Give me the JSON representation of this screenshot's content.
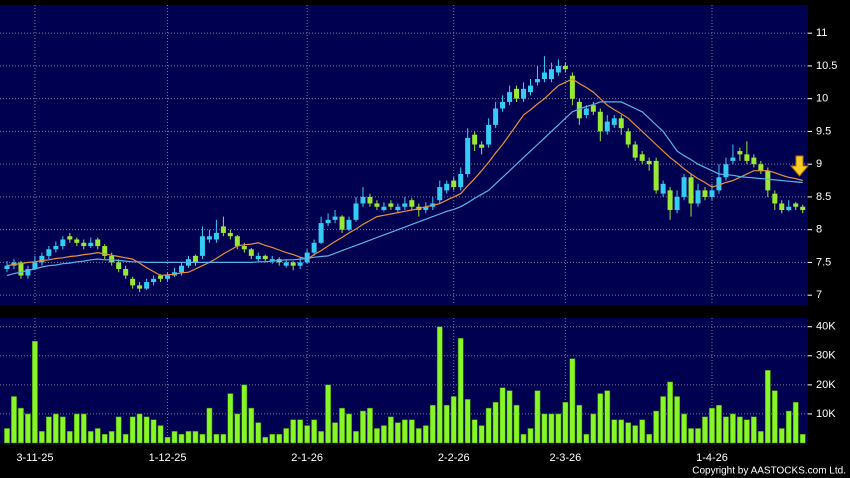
{
  "chart_data": [
    {
      "type": "candlestick",
      "candles": [
        [
          7.4,
          7.52,
          7.35,
          7.45
        ],
        [
          7.45,
          7.55,
          7.4,
          7.5
        ],
        [
          7.5,
          7.52,
          7.25,
          7.3
        ],
        [
          7.3,
          7.45,
          7.25,
          7.4
        ],
        [
          7.4,
          7.6,
          7.38,
          7.5
        ],
        [
          7.5,
          7.65,
          7.45,
          7.6
        ],
        [
          7.6,
          7.75,
          7.55,
          7.7
        ],
        [
          7.7,
          7.82,
          7.65,
          7.75
        ],
        [
          7.75,
          7.9,
          7.7,
          7.85
        ],
        [
          7.9,
          7.95,
          7.8,
          7.85
        ],
        [
          7.85,
          7.88,
          7.75,
          7.8
        ],
        [
          7.8,
          7.85,
          7.7,
          7.75
        ],
        [
          7.75,
          7.88,
          7.72,
          7.8
        ],
        [
          7.85,
          7.88,
          7.7,
          7.75
        ],
        [
          7.75,
          7.78,
          7.55,
          7.6
        ],
        [
          7.6,
          7.65,
          7.45,
          7.5
        ],
        [
          7.5,
          7.55,
          7.35,
          7.4
        ],
        [
          7.4,
          7.45,
          7.25,
          7.3
        ],
        [
          7.25,
          7.28,
          7.1,
          7.15
        ],
        [
          7.15,
          7.2,
          7.05,
          7.1
        ],
        [
          7.1,
          7.25,
          7.08,
          7.2
        ],
        [
          7.2,
          7.3,
          7.15,
          7.25
        ],
        [
          7.3,
          7.32,
          7.2,
          7.25
        ],
        [
          7.25,
          7.35,
          7.2,
          7.3
        ],
        [
          7.3,
          7.42,
          7.28,
          7.35
        ],
        [
          7.35,
          7.5,
          7.3,
          7.45
        ],
        [
          7.45,
          7.6,
          7.42,
          7.55
        ],
        [
          7.6,
          7.62,
          7.45,
          7.5
        ],
        [
          7.6,
          8.05,
          7.55,
          7.9
        ],
        [
          7.85,
          8.0,
          7.8,
          7.9
        ],
        [
          7.85,
          8.15,
          7.8,
          7.95
        ],
        [
          8.05,
          8.2,
          7.9,
          7.95
        ],
        [
          7.95,
          8.0,
          7.85,
          7.9
        ],
        [
          7.9,
          7.92,
          7.7,
          7.75
        ],
        [
          7.75,
          7.8,
          7.65,
          7.7
        ],
        [
          7.7,
          7.72,
          7.55,
          7.6
        ],
        [
          7.55,
          7.65,
          7.52,
          7.6
        ],
        [
          7.6,
          7.62,
          7.5,
          7.55
        ],
        [
          7.52,
          7.6,
          7.48,
          7.55
        ],
        [
          7.55,
          7.58,
          7.45,
          7.5
        ],
        [
          7.45,
          7.55,
          7.42,
          7.5
        ],
        [
          7.5,
          7.52,
          7.38,
          7.45
        ],
        [
          7.45,
          7.58,
          7.4,
          7.5
        ],
        [
          7.5,
          7.7,
          7.48,
          7.65
        ],
        [
          7.65,
          7.85,
          7.6,
          7.8
        ],
        [
          7.8,
          8.2,
          7.78,
          8.1
        ],
        [
          8.1,
          8.25,
          8.05,
          8.15
        ],
        [
          8.15,
          8.3,
          8.1,
          8.2
        ],
        [
          8.2,
          8.22,
          7.95,
          8.0
        ],
        [
          8.0,
          8.2,
          7.98,
          8.15
        ],
        [
          8.15,
          8.5,
          8.12,
          8.4
        ],
        [
          8.4,
          8.65,
          8.35,
          8.5
        ],
        [
          8.5,
          8.55,
          8.35,
          8.4
        ],
        [
          8.4,
          8.45,
          8.3,
          8.35
        ],
        [
          8.3,
          8.42,
          8.28,
          8.35
        ],
        [
          8.4,
          8.45,
          8.3,
          8.35
        ],
        [
          8.3,
          8.4,
          8.25,
          8.35
        ],
        [
          8.35,
          8.5,
          8.3,
          8.4
        ],
        [
          8.45,
          8.48,
          8.3,
          8.35
        ],
        [
          8.35,
          8.4,
          8.2,
          8.3
        ],
        [
          8.3,
          8.42,
          8.25,
          8.35
        ],
        [
          8.35,
          8.5,
          8.3,
          8.4
        ],
        [
          8.45,
          8.75,
          8.4,
          8.65
        ],
        [
          8.6,
          8.75,
          8.55,
          8.7
        ],
        [
          8.75,
          8.8,
          8.6,
          8.65
        ],
        [
          8.65,
          8.95,
          8.6,
          8.85
        ],
        [
          8.85,
          9.55,
          8.8,
          9.4
        ],
        [
          9.45,
          9.5,
          9.2,
          9.3
        ],
        [
          9.3,
          9.35,
          9.15,
          9.25
        ],
        [
          9.3,
          9.7,
          9.25,
          9.6
        ],
        [
          9.6,
          9.95,
          9.55,
          9.85
        ],
        [
          9.85,
          10.05,
          9.8,
          9.95
        ],
        [
          9.95,
          10.2,
          9.9,
          10.1
        ],
        [
          10.15,
          10.2,
          9.95,
          10.0
        ],
        [
          10.0,
          10.25,
          9.95,
          10.15
        ],
        [
          10.1,
          10.3,
          10.05,
          10.2
        ],
        [
          10.25,
          10.5,
          10.2,
          10.3
        ],
        [
          10.3,
          10.65,
          10.25,
          10.4
        ],
        [
          10.3,
          10.55,
          10.25,
          10.45
        ],
        [
          10.4,
          10.6,
          10.35,
          10.5
        ],
        [
          10.5,
          10.55,
          10.4,
          10.45
        ],
        [
          10.35,
          10.4,
          9.9,
          10.0
        ],
        [
          9.95,
          10.0,
          9.6,
          9.7
        ],
        [
          9.75,
          9.9,
          9.7,
          9.85
        ],
        [
          9.9,
          9.95,
          9.75,
          9.8
        ],
        [
          9.8,
          9.85,
          9.35,
          9.5
        ],
        [
          9.5,
          9.75,
          9.45,
          9.65
        ],
        [
          9.6,
          9.75,
          9.55,
          9.7
        ],
        [
          9.7,
          9.75,
          9.45,
          9.55
        ],
        [
          9.5,
          9.55,
          9.25,
          9.3
        ],
        [
          9.3,
          9.35,
          9.05,
          9.1
        ],
        [
          9.15,
          9.2,
          9.0,
          9.05
        ],
        [
          9.05,
          9.1,
          8.9,
          9.0
        ],
        [
          9.05,
          9.1,
          8.55,
          8.6
        ],
        [
          8.55,
          8.75,
          8.5,
          8.7
        ],
        [
          8.6,
          8.65,
          8.15,
          8.3
        ],
        [
          8.3,
          8.6,
          8.25,
          8.5
        ],
        [
          8.5,
          8.85,
          8.45,
          8.8
        ],
        [
          8.8,
          8.85,
          8.2,
          8.4
        ],
        [
          8.4,
          8.7,
          8.35,
          8.6
        ],
        [
          8.6,
          8.65,
          8.45,
          8.5
        ],
        [
          8.5,
          8.7,
          8.45,
          8.6
        ],
        [
          8.6,
          9.0,
          8.55,
          8.8
        ],
        [
          8.8,
          9.1,
          8.75,
          9.0
        ],
        [
          9.05,
          9.3,
          9.0,
          9.1
        ],
        [
          9.2,
          9.25,
          9.05,
          9.15
        ],
        [
          9.15,
          9.35,
          9.0,
          9.05
        ],
        [
          9.1,
          9.15,
          8.95,
          9.0
        ],
        [
          9.0,
          9.05,
          8.85,
          8.9
        ],
        [
          8.9,
          8.95,
          8.5,
          8.6
        ],
        [
          8.55,
          8.6,
          8.3,
          8.4
        ],
        [
          8.4,
          8.45,
          8.25,
          8.3
        ],
        [
          8.3,
          8.45,
          8.28,
          8.35
        ],
        [
          8.4,
          8.42,
          8.3,
          8.35
        ],
        [
          8.35,
          8.38,
          8.25,
          8.3
        ]
      ],
      "up_color": "#33ccf5",
      "down_color": "#99e833",
      "series": [
        {
          "color": "#e8903a",
          "values": [
            7.45,
            7.47,
            7.48,
            7.5,
            7.51,
            7.53,
            7.54,
            7.56,
            7.57,
            7.59,
            7.6,
            7.62,
            7.63,
            7.65,
            7.63,
            7.61,
            7.59,
            7.57,
            7.55,
            7.49,
            7.42,
            7.36,
            7.3,
            7.31,
            7.32,
            7.34,
            7.35,
            7.4,
            7.45,
            7.5,
            7.56,
            7.63,
            7.69,
            7.75,
            7.77,
            7.78,
            7.8,
            7.76,
            7.73,
            7.69,
            7.65,
            7.62,
            7.58,
            7.55,
            7.62,
            7.68,
            7.75,
            7.82,
            7.88,
            7.95,
            8.01,
            8.08,
            8.14,
            8.2,
            8.22,
            8.24,
            8.26,
            8.28,
            8.3,
            8.32,
            8.35,
            8.37,
            8.4,
            8.45,
            8.5,
            8.55,
            8.67,
            8.78,
            8.9,
            9.03,
            9.17,
            9.3,
            9.45,
            9.6,
            9.75,
            9.83,
            9.92,
            10.0,
            10.1,
            10.2,
            10.25,
            10.3,
            10.23,
            10.17,
            10.1,
            10.0,
            9.9,
            9.83,
            9.77,
            9.7,
            9.6,
            9.5,
            9.4,
            9.3,
            9.2,
            9.1,
            9.02,
            8.93,
            8.85,
            8.78,
            8.72,
            8.65,
            8.68,
            8.72,
            8.75,
            8.8,
            8.85,
            8.9,
            8.9,
            8.9,
            8.87,
            8.83,
            8.8,
            8.78,
            8.75
          ]
        },
        {
          "color": "#5ab4e8",
          "values": [
            7.3,
            7.33,
            7.35,
            7.38,
            7.4,
            7.43,
            7.45,
            7.46,
            7.48,
            7.49,
            7.51,
            7.52,
            7.54,
            7.55,
            7.54,
            7.54,
            7.53,
            7.52,
            7.51,
            7.51,
            7.5,
            7.5,
            7.5,
            7.5,
            7.5,
            7.5,
            7.5,
            7.5,
            7.5,
            7.5,
            7.5,
            7.5,
            7.5,
            7.5,
            7.5,
            7.5,
            7.51,
            7.51,
            7.52,
            7.53,
            7.54,
            7.54,
            7.55,
            7.56,
            7.58,
            7.59,
            7.6,
            7.64,
            7.68,
            7.72,
            7.76,
            7.8,
            7.84,
            7.88,
            7.92,
            7.96,
            8.0,
            8.04,
            8.08,
            8.12,
            8.16,
            8.2,
            8.24,
            8.28,
            8.31,
            8.35,
            8.41,
            8.48,
            8.54,
            8.6,
            8.7,
            8.8,
            8.9,
            9.0,
            9.1,
            9.2,
            9.3,
            9.4,
            9.5,
            9.6,
            9.7,
            9.8,
            9.84,
            9.88,
            9.91,
            9.95,
            9.95,
            9.95,
            9.95,
            9.9,
            9.85,
            9.8,
            9.7,
            9.6,
            9.5,
            9.35,
            9.2,
            9.13,
            9.07,
            9.0,
            8.95,
            8.9,
            8.85,
            8.84,
            8.83,
            8.81,
            8.8,
            8.79,
            8.78,
            8.77,
            8.76,
            8.75,
            8.74,
            8.73,
            8.72
          ]
        }
      ],
      "ylim": [
        6.85,
        11.43
      ],
      "yticks": [
        7,
        7.5,
        8,
        8.5,
        9,
        9.5,
        10,
        10.5,
        11
      ],
      "grid": true
    },
    {
      "type": "bar",
      "categories": [
        null,
        null,
        null,
        null,
        "3-11-25",
        null,
        null,
        null,
        null,
        null,
        null,
        null,
        null,
        null,
        null,
        null,
        null,
        null,
        null,
        null,
        null,
        null,
        null,
        "1-12-25",
        null,
        null,
        null,
        null,
        null,
        null,
        null,
        null,
        null,
        null,
        null,
        null,
        null,
        null,
        null,
        null,
        null,
        null,
        null,
        "2-1-26",
        null,
        null,
        null,
        null,
        null,
        null,
        null,
        null,
        null,
        null,
        null,
        null,
        null,
        null,
        null,
        null,
        null,
        null,
        null,
        null,
        "2-2-26",
        null,
        null,
        null,
        null,
        null,
        null,
        null,
        null,
        null,
        null,
        null,
        null,
        null,
        null,
        null,
        "2-3-26",
        null,
        null,
        null,
        null,
        null,
        null,
        null,
        null,
        null,
        null,
        null,
        null,
        null,
        null,
        null,
        null,
        null,
        null,
        null,
        null,
        "1-4-26",
        null,
        null,
        null,
        null,
        null,
        null,
        null,
        null,
        null,
        null,
        null,
        null,
        null
      ],
      "values": [
        5000,
        16000,
        12000,
        10000,
        35000,
        4000,
        9000,
        10000,
        9000,
        4000,
        10000,
        10000,
        4000,
        5000,
        3000,
        4000,
        9000,
        3000,
        9000,
        10000,
        9000,
        8000,
        6000,
        2000,
        4000,
        3000,
        4000,
        4000,
        3000,
        12000,
        3000,
        3000,
        17000,
        10000,
        20000,
        12000,
        7000,
        2000,
        3000,
        3000,
        5000,
        8000,
        8000,
        6000,
        8000,
        4000,
        20000,
        7000,
        12000,
        10000,
        4000,
        11000,
        12000,
        5000,
        6000,
        9000,
        7000,
        8000,
        8000,
        5000,
        6000,
        13000,
        40000,
        13000,
        16000,
        36000,
        15000,
        8000,
        6000,
        12000,
        14000,
        19000,
        18000,
        13000,
        3000,
        5000,
        18000,
        10000,
        10000,
        10000,
        14000,
        29000,
        13000,
        3000,
        10000,
        17000,
        18000,
        8000,
        8000,
        7000,
        6000,
        8000,
        3000,
        11000,
        16000,
        21000,
        16000,
        10000,
        5000,
        5000,
        9000,
        12000,
        13000,
        9000,
        10000,
        9000,
        8000,
        9000,
        4000,
        25000,
        18000,
        5000,
        11000,
        14000,
        3000
      ],
      "color": "#88f526",
      "ylim": [
        0,
        43000
      ],
      "yticks": [
        {
          "value": 10000,
          "label": "10K"
        },
        {
          "value": 20000,
          "label": "20K"
        },
        {
          "value": 30000,
          "label": "30K"
        },
        {
          "value": 40000,
          "label": "40K"
        }
      ],
      "grid": true
    }
  ],
  "copyright": "Copyright by AASTOCKS.com Ltd."
}
